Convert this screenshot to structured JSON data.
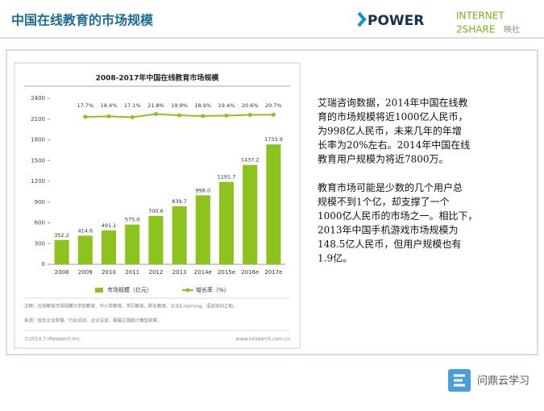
{
  "header": {
    "title": "中国在线教育的市场规模",
    "logo_power": "POWER",
    "logo_internet": "INTERNET",
    "logo_2share": "2SHARE",
    "logo_ys": "映社"
  },
  "chart_data": {
    "type": "bar",
    "title": "2008-2017年中国在线教育市场规模",
    "categories": [
      "2008",
      "2009",
      "2010",
      "2011",
      "2012",
      "2013",
      "2014e",
      "2015e",
      "2016e",
      "2017e"
    ],
    "series": [
      {
        "name": "市场规模（亿元）",
        "color": "#8dc21f",
        "values": [
          352.2,
          414.6,
          491.1,
          575.0,
          700.6,
          839.7,
          998.0,
          1191.7,
          1437.2,
          1733.9
        ],
        "value_labels": [
          "352.2",
          "414.6",
          "491.1",
          "575.0",
          "700.6",
          "839.7",
          "998.0",
          "1191.7",
          "1437.2",
          "1733.9"
        ]
      },
      {
        "name": "增长率（%）",
        "type": "line",
        "axis": "y2",
        "color": "#8dc21f",
        "values": [
          null,
          17.7,
          18.4,
          17.1,
          21.8,
          19.9,
          18.9,
          19.4,
          20.6,
          20.7
        ],
        "value_labels": [
          null,
          "17.7%",
          "18.4%",
          "17.1%",
          "21.8%",
          "19.9%",
          "18.9%",
          "19.4%",
          "20.6%",
          "20.7%"
        ]
      }
    ],
    "ylim": [
      0,
      2400
    ],
    "yticks": [
      0,
      300,
      600,
      900,
      1200,
      1500,
      1800,
      2100,
      2400
    ],
    "y2lim": [
      -200,
      45
    ],
    "grid": false,
    "legend": "bottom",
    "note": "注释：在线教育市场规模为学前教育、中小学教育、学历教育、职业教育、企业E-learning、语言培训之和。",
    "source": "来源：综合企业财报、行业访谈、企业访谈、根据艾瑞统计模型核算。",
    "copyright": "©2014.3 iResearch Inc.",
    "website": "www.iresearch.com.cn"
  },
  "panel": {
    "paragraphs": [
      [
        "艾瑞咨询数据，2014年中国在线教",
        "育的市场规模将近1000亿人民币，",
        "为998亿人民币，未来几年的年增",
        "长率为20%左右。2014年中国在线",
        "教育用户规模为将近7800万。"
      ],
      [
        "教育市场可能是少数的几个用户总",
        "规模不到1个亿，却支撑了一个",
        "1000亿人民币的市场之一。相比下，",
        "2013年中国手机游戏市场规模为",
        "148.5亿人民币，但用户规模也有",
        "1.9亿。"
      ]
    ]
  },
  "footer": {
    "brand": "问鼎云学习"
  }
}
